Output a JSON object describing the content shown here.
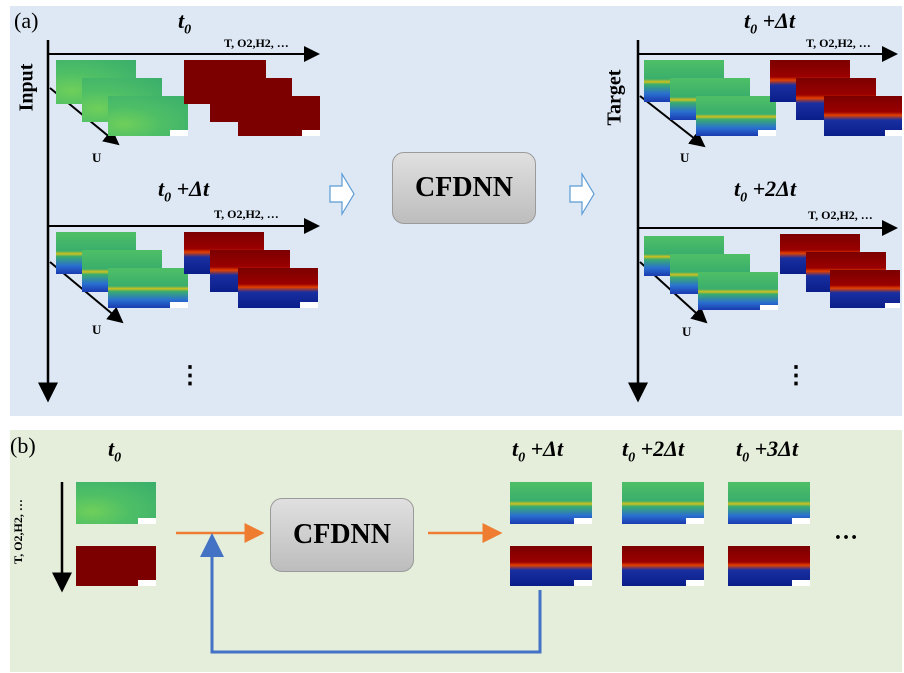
{
  "panel_a": {
    "label": "(a)",
    "input_label": "Input",
    "target_label": "Target",
    "t0": "t",
    "t0_sub": "0",
    "t0_dt": " +Δt",
    "t0_2dt": " +2Δt",
    "vars": "T, O2,H2, …",
    "u_label": "U",
    "dots": "⋮",
    "model": "CFDNN"
  },
  "panel_b": {
    "label": "(b)",
    "t0": "t",
    "t0_sub": "0",
    "t0_dt": " +Δt",
    "t0_2dt": " +2Δt",
    "t0_3dt": " +3Δt",
    "vars": "T, O2,H2, …",
    "model": "CFDNN",
    "dots": "…"
  },
  "colors": {
    "panel_a_bg": "#dde8f4",
    "panel_b_bg": "#e4eedb",
    "orange_arrow": "#ee7d31",
    "blue_arrow": "#4472c4"
  }
}
